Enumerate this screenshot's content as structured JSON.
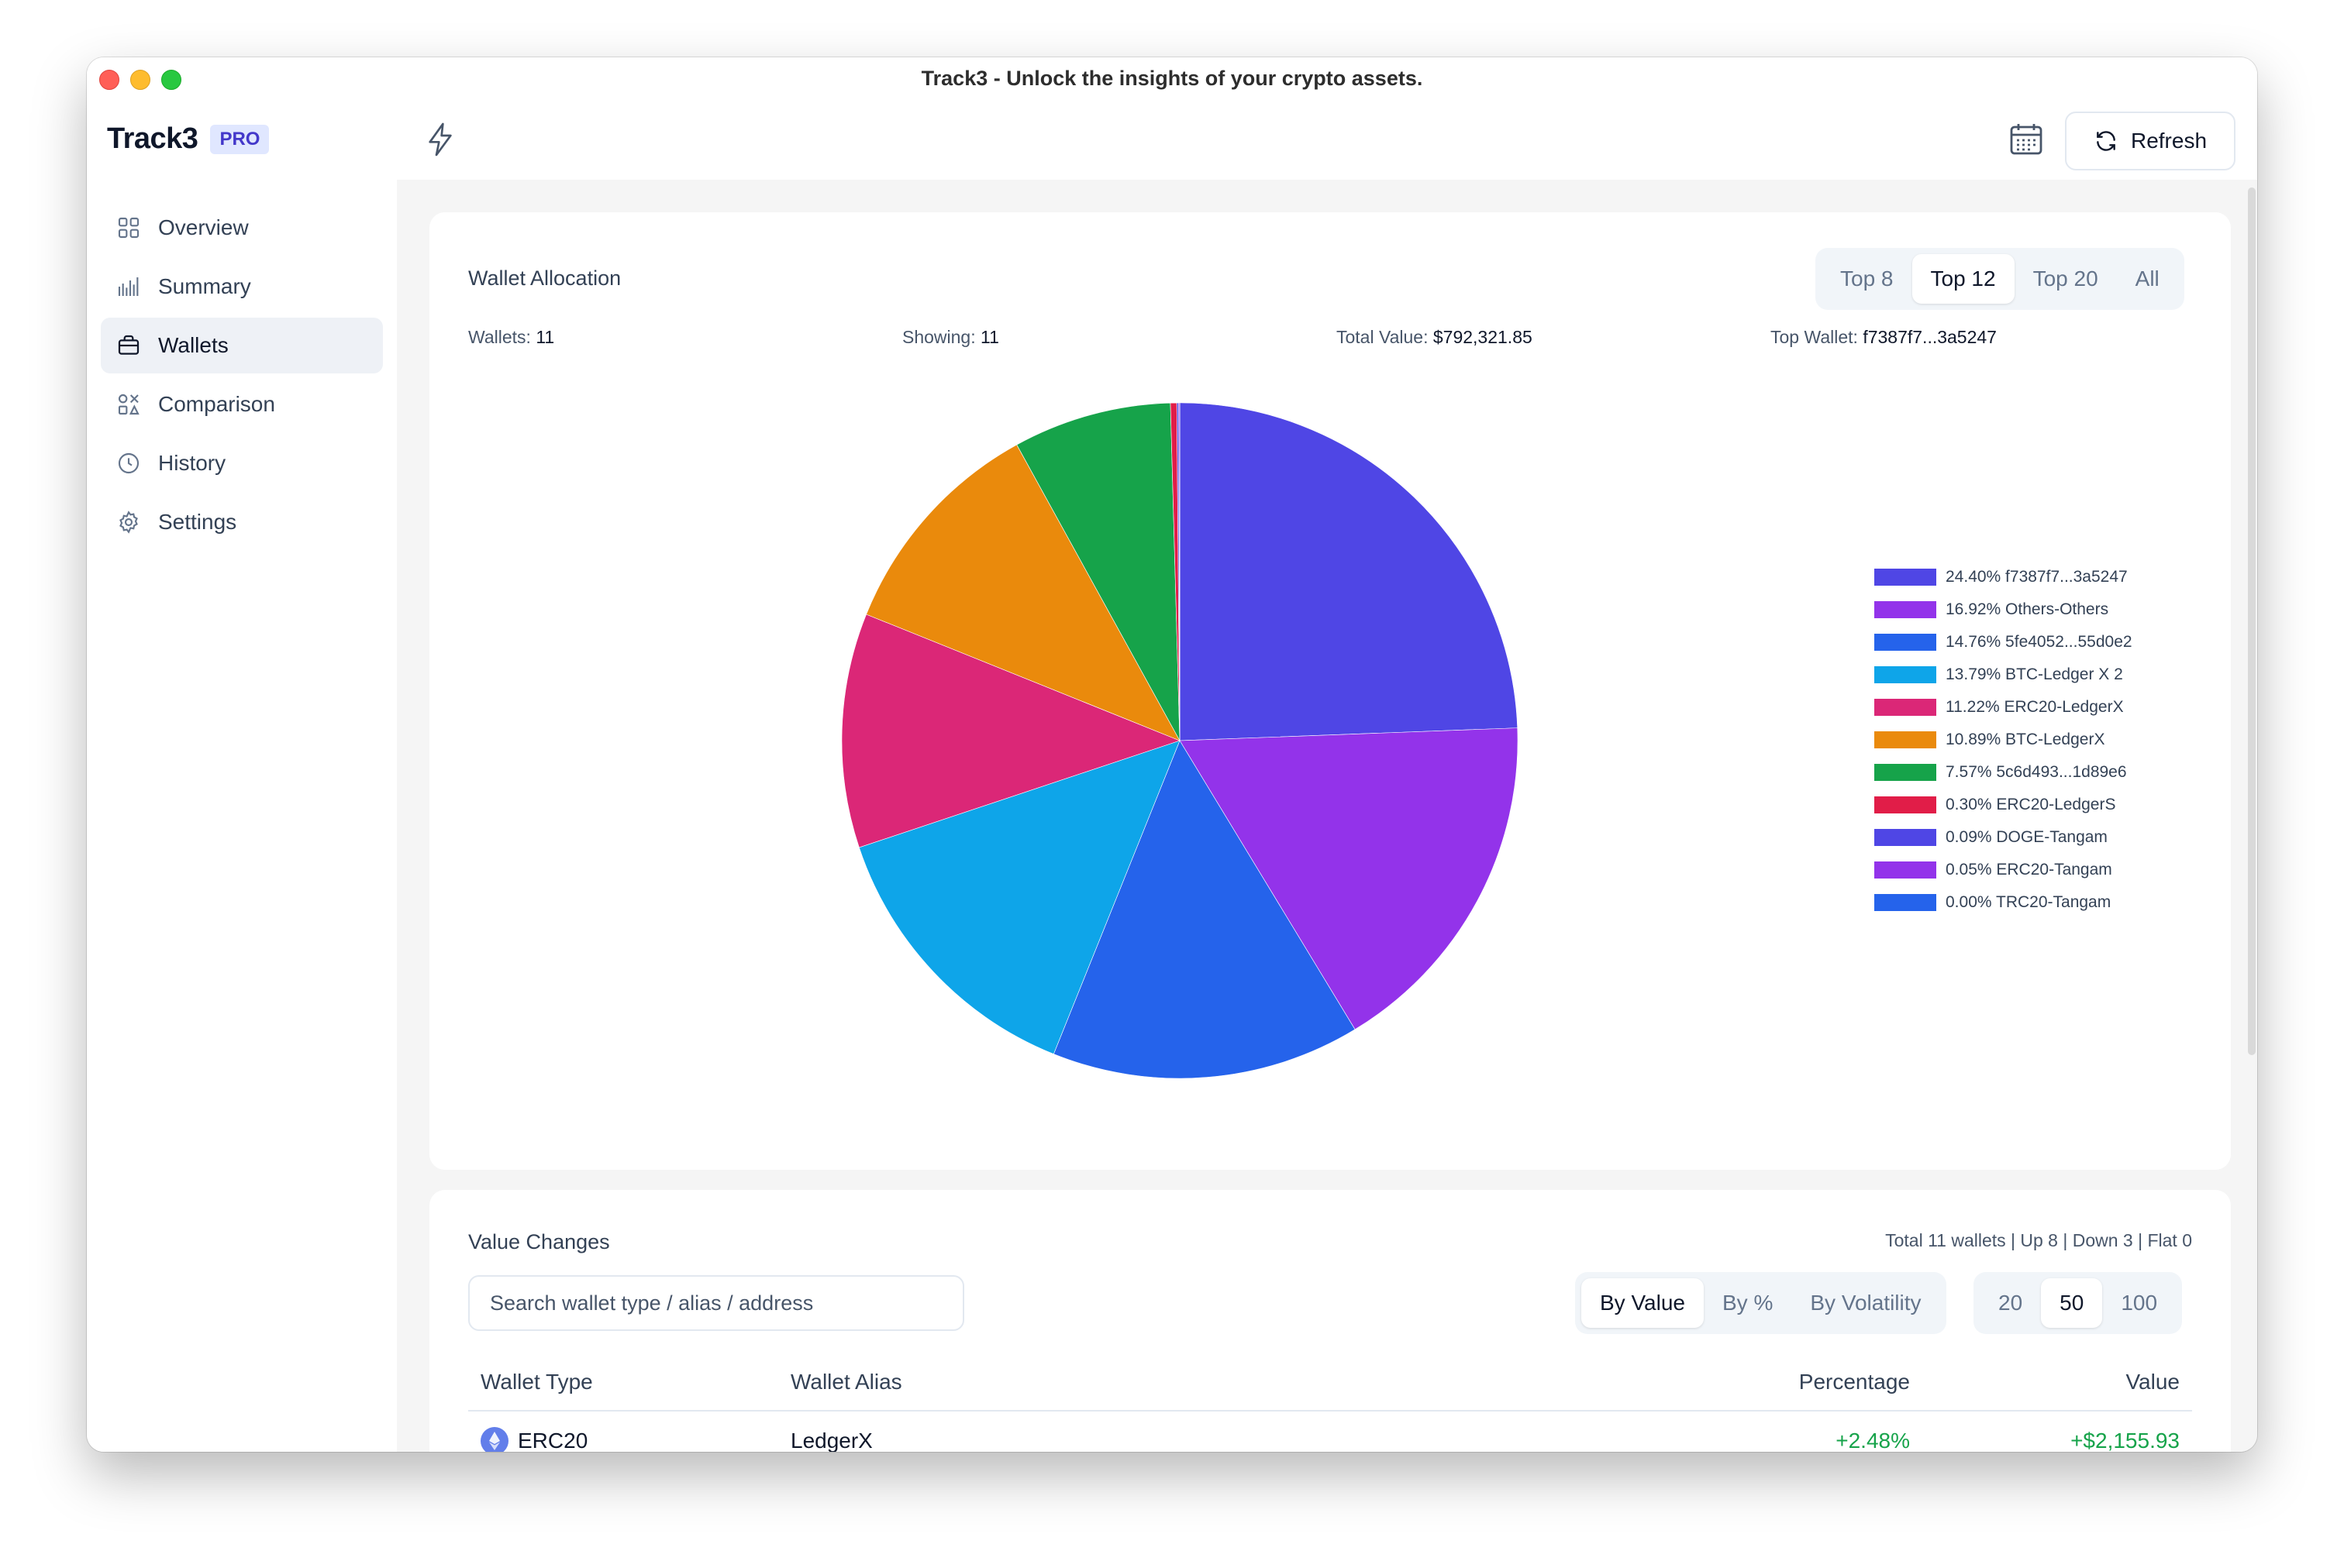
{
  "window": {
    "title": "Track3 - Unlock the insights of your crypto assets."
  },
  "sidebar": {
    "brand": "Track3",
    "badge": "PRO",
    "items": [
      {
        "label": "Overview",
        "icon": "grid-icon",
        "active": false
      },
      {
        "label": "Summary",
        "icon": "bar-chart-icon",
        "active": false
      },
      {
        "label": "Wallets",
        "icon": "briefcase-icon",
        "active": true
      },
      {
        "label": "Comparison",
        "icon": "compare-icon",
        "active": false
      },
      {
        "label": "History",
        "icon": "clock-icon",
        "active": false
      },
      {
        "label": "Settings",
        "icon": "gear-icon",
        "active": false
      }
    ],
    "collapse_glyph": "‹"
  },
  "topbar": {
    "refresh_label": "Refresh"
  },
  "allocation": {
    "title": "Wallet Allocation",
    "filters": [
      "Top 8",
      "Top 12",
      "Top 20",
      "All"
    ],
    "active_filter": "Top 12",
    "stats": {
      "wallets_label": "Wallets:",
      "wallets_value": "11",
      "showing_label": "Showing:",
      "showing_value": "11",
      "total_label": "Total Value:",
      "total_value": "$792,321.85",
      "top_label": "Top Wallet:",
      "top_value": "f7387f7...3a5247"
    }
  },
  "chart_data": {
    "type": "pie",
    "categories": [
      "f7387f7...3a5247",
      "Others-Others",
      "5fe4052...55d0e2",
      "BTC-Ledger X 2",
      "ERC20-LedgerX",
      "BTC-LedgerX",
      "5c6d493...1d89e6",
      "ERC20-LedgerS",
      "DOGE-Tangam",
      "ERC20-Tangam",
      "TRC20-Tangam"
    ],
    "values": [
      24.4,
      16.92,
      14.76,
      13.79,
      11.22,
      10.89,
      7.57,
      0.3,
      0.09,
      0.05,
      0.0
    ],
    "labels": [
      "24.40% f7387f7...3a5247",
      "16.92% Others-Others",
      "14.76% 5fe4052...55d0e2",
      "13.79% BTC-Ledger X 2",
      "11.22% ERC20-LedgerX",
      "10.89% BTC-LedgerX",
      "7.57% 5c6d493...1d89e6",
      "0.30% ERC20-LedgerS",
      "0.09% DOGE-Tangam",
      "0.05% ERC20-Tangam",
      "0.00% TRC20-Tangam"
    ],
    "colors": [
      "#4f46e5",
      "#9333ea",
      "#2563eb",
      "#0ea5e9",
      "#db2777",
      "#ea8a0c",
      "#16a34a",
      "#e11d48",
      "#4f46e5",
      "#9333ea",
      "#2563eb"
    ],
    "legend_position": "right"
  },
  "changes": {
    "title": "Value Changes",
    "summary": "Total 11 wallets | Up 8 | Down 3 | Flat 0",
    "search_placeholder": "Search wallet type / alias / address",
    "sort_options": [
      "By Value",
      "By %",
      "By Volatility"
    ],
    "active_sort": "By Value",
    "page_sizes": [
      "20",
      "50",
      "100"
    ],
    "active_page_size": "50",
    "columns": [
      "Wallet Type",
      "Wallet Alias",
      "Percentage",
      "Value"
    ],
    "rows": [
      {
        "type": "ERC20",
        "alias": "LedgerX",
        "percentage": "+2.48%",
        "value": "+$2,155.93",
        "icon": "ethereum-icon"
      }
    ]
  }
}
